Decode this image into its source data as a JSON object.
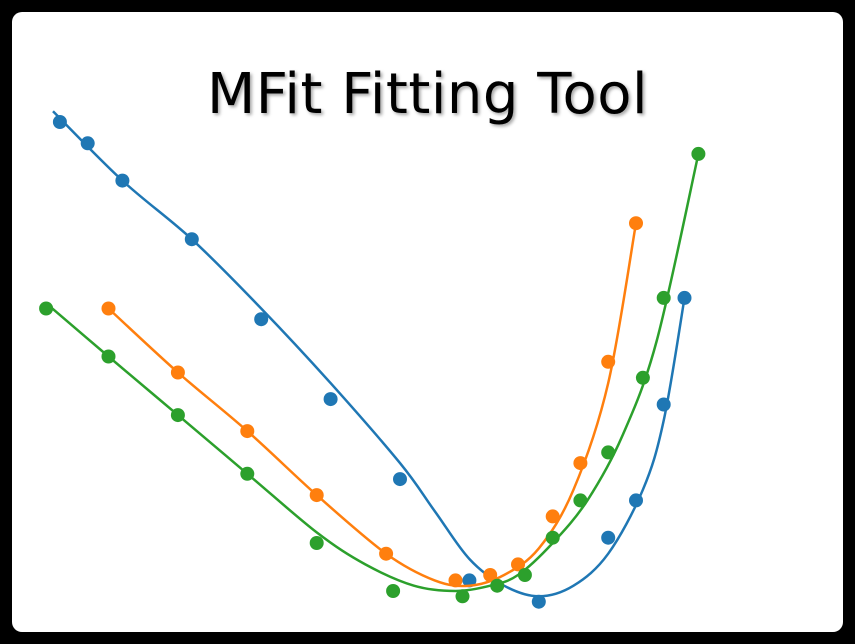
{
  "chart_data": {
    "type": "scatter",
    "title": "MFit Fitting Tool",
    "xlabel": "",
    "ylabel": "",
    "xlim": [
      0,
      100
    ],
    "ylim": [
      0,
      100
    ],
    "grid": false,
    "legend": "none",
    "series": [
      {
        "color": "#1f77b4",
        "points": [
          [
            1,
            91
          ],
          [
            5,
            87
          ],
          [
            10,
            80
          ],
          [
            20,
            69
          ],
          [
            30,
            54
          ],
          [
            40,
            39
          ],
          [
            50,
            24
          ],
          [
            60,
            5
          ],
          [
            70,
            1
          ],
          [
            80,
            13
          ],
          [
            84,
            20
          ],
          [
            88,
            38
          ],
          [
            91,
            58
          ]
        ],
        "fit": [
          [
            0,
            93
          ],
          [
            10,
            80
          ],
          [
            20,
            69
          ],
          [
            30,
            56
          ],
          [
            40,
            42
          ],
          [
            50,
            27
          ],
          [
            55,
            18
          ],
          [
            60,
            9
          ],
          [
            65,
            4
          ],
          [
            70,
            2
          ],
          [
            75,
            4
          ],
          [
            80,
            10
          ],
          [
            85,
            22
          ],
          [
            88,
            35
          ],
          [
            91,
            58
          ]
        ]
      },
      {
        "color": "#ff7f0e",
        "points": [
          [
            8,
            56
          ],
          [
            18,
            44
          ],
          [
            28,
            33
          ],
          [
            38,
            21
          ],
          [
            48,
            10
          ],
          [
            58,
            5
          ],
          [
            63,
            6
          ],
          [
            67,
            8
          ],
          [
            72,
            17
          ],
          [
            76,
            27
          ],
          [
            80,
            46
          ],
          [
            84,
            72
          ]
        ],
        "fit": [
          [
            8,
            56
          ],
          [
            18,
            44
          ],
          [
            28,
            33
          ],
          [
            38,
            21
          ],
          [
            48,
            10
          ],
          [
            55,
            5
          ],
          [
            60,
            4
          ],
          [
            65,
            6
          ],
          [
            70,
            11
          ],
          [
            75,
            22
          ],
          [
            80,
            42
          ],
          [
            84,
            72
          ]
        ]
      },
      {
        "color": "#2ca02c",
        "points": [
          [
            -1,
            56
          ],
          [
            8,
            47
          ],
          [
            18,
            36
          ],
          [
            28,
            25
          ],
          [
            38,
            12
          ],
          [
            49,
            3
          ],
          [
            59,
            2
          ],
          [
            64,
            4
          ],
          [
            68,
            6
          ],
          [
            72,
            13
          ],
          [
            76,
            20
          ],
          [
            80,
            29
          ],
          [
            85,
            43
          ],
          [
            88,
            58
          ],
          [
            93,
            85
          ]
        ],
        "fit": [
          [
            -1,
            57
          ],
          [
            8,
            47
          ],
          [
            18,
            36
          ],
          [
            28,
            25
          ],
          [
            38,
            14
          ],
          [
            45,
            8
          ],
          [
            52,
            4
          ],
          [
            58,
            3
          ],
          [
            63,
            4
          ],
          [
            67,
            6
          ],
          [
            72,
            12
          ],
          [
            77,
            20
          ],
          [
            82,
            32
          ],
          [
            87,
            50
          ],
          [
            93,
            85
          ]
        ]
      }
    ]
  }
}
